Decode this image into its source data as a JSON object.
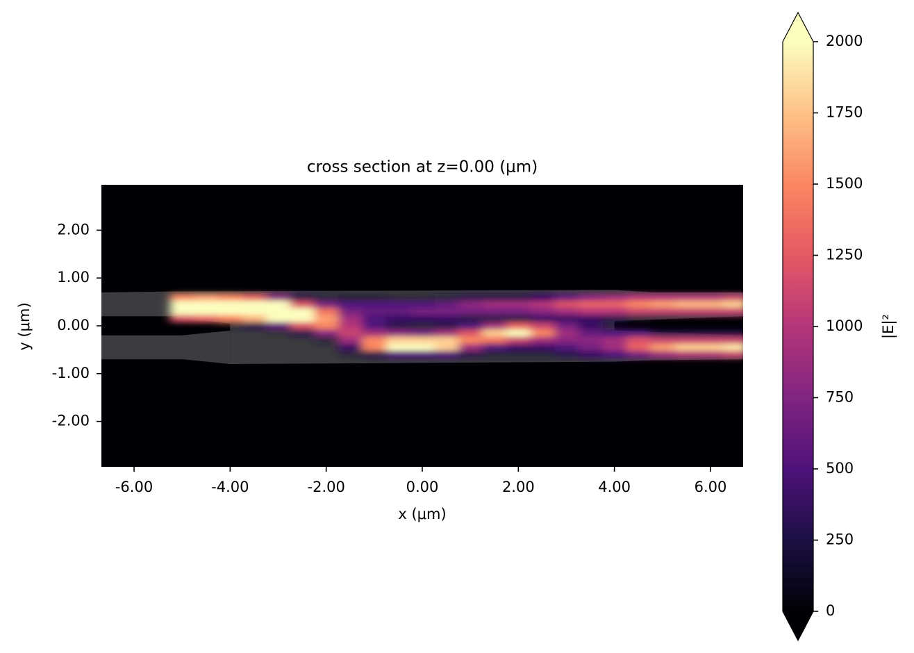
{
  "chart_data": {
    "type": "heatmap",
    "title": "cross section at z=0.00 (μm)",
    "x_label": "x (μm)",
    "y_label": "y (μm)",
    "xlim": [
      -6.68,
      6.68
    ],
    "ylim": [
      -2.95,
      2.95
    ],
    "xticks": [
      {
        "value": -6,
        "label": "-6.00"
      },
      {
        "value": -4,
        "label": "-4.00"
      },
      {
        "value": -2,
        "label": "-2.00"
      },
      {
        "value": 0,
        "label": "0.00"
      },
      {
        "value": 2,
        "label": "2.00"
      },
      {
        "value": 4,
        "label": "4.00"
      },
      {
        "value": 6,
        "label": "6.00"
      }
    ],
    "yticks": [
      {
        "value": -2,
        "label": "-2.00"
      },
      {
        "value": -1,
        "label": "-1.00"
      },
      {
        "value": 0,
        "label": "0.00"
      },
      {
        "value": 1,
        "label": "1.00"
      },
      {
        "value": 2,
        "label": "2.00"
      }
    ],
    "colormap": "magma",
    "structure_color": "#3c3c40",
    "structures": [
      {
        "points": [
          [
            -6.68,
            0.7
          ],
          [
            -5,
            0.72
          ],
          [
            -5,
            0.2
          ],
          [
            -6.68,
            0.2
          ]
        ]
      },
      {
        "points": [
          [
            -6.68,
            -0.2
          ],
          [
            -5,
            -0.2
          ],
          [
            -4,
            -0.1
          ],
          [
            -4,
            -0.8
          ],
          [
            -5,
            -0.7
          ],
          [
            -6.68,
            -0.7
          ]
        ]
      },
      {
        "points": [
          [
            -5,
            0.72
          ],
          [
            4,
            0.75
          ],
          [
            4.8,
            0.7
          ],
          [
            6.68,
            0.7
          ],
          [
            6.68,
            0.2
          ],
          [
            4,
            0.1
          ],
          [
            4,
            -0.1
          ],
          [
            6.68,
            -0.2
          ],
          [
            6.68,
            -0.7
          ],
          [
            4.8,
            -0.72
          ],
          [
            4,
            -0.75
          ],
          [
            -4,
            -0.8
          ],
          [
            -4,
            0.05
          ],
          [
            -5,
            0.15
          ]
        ]
      }
    ],
    "field": {
      "x": [
        -5,
        -4.5,
        -4,
        -3.5,
        -3,
        -2.5,
        -2,
        -1.5,
        -1,
        -0.5,
        0,
        0.5,
        1,
        1.5,
        2,
        2.5,
        3,
        3.5,
        4,
        4.5,
        5,
        5.5,
        6,
        6.5
      ],
      "y": [
        0.6,
        0.45,
        0.3,
        0.15,
        0,
        -0.15,
        -0.3,
        -0.45,
        -0.6
      ],
      "z": [
        [
          1500,
          1600,
          1500,
          1300,
          800,
          300,
          200,
          150,
          150,
          100,
          100,
          200,
          300,
          300,
          300,
          400,
          600,
          800,
          900,
          1000,
          1000,
          1000,
          1000,
          1100
        ],
        [
          2000,
          2000,
          2000,
          2000,
          2000,
          1200,
          700,
          500,
          500,
          500,
          500,
          600,
          800,
          900,
          900,
          1000,
          1200,
          1300,
          1300,
          1500,
          1600,
          1700,
          1700,
          1800
        ],
        [
          2000,
          2000,
          2000,
          2000,
          2000,
          2000,
          1400,
          700,
          600,
          600,
          700,
          700,
          700,
          700,
          700,
          800,
          900,
          1000,
          1000,
          1100,
          1100,
          1100,
          1100,
          1100
        ],
        [
          1200,
          1300,
          1500,
          1700,
          2000,
          2000,
          1600,
          900,
          500,
          400,
          400,
          400,
          300,
          300,
          300,
          400,
          400,
          400,
          300,
          200,
          100,
          100,
          100,
          100
        ],
        [
          0,
          0,
          100,
          300,
          600,
          1200,
          1500,
          1000,
          500,
          300,
          200,
          300,
          500,
          900,
          1300,
          1100,
          700,
          400,
          100,
          0,
          0,
          0,
          0,
          0
        ],
        [
          0,
          0,
          0,
          0,
          50,
          300,
          800,
          1100,
          900,
          800,
          700,
          900,
          1200,
          1800,
          2000,
          1500,
          900,
          600,
          500,
          500,
          300,
          300,
          300,
          300
        ],
        [
          0,
          0,
          0,
          0,
          0,
          0,
          200,
          900,
          1500,
          1800,
          1800,
          1800,
          1500,
          1400,
          1100,
          900,
          800,
          800,
          900,
          1200,
          1100,
          1100,
          1100,
          1100
        ],
        [
          0,
          0,
          0,
          0,
          0,
          0,
          0,
          400,
          1500,
          2000,
          2000,
          1800,
          900,
          500,
          400,
          400,
          500,
          700,
          900,
          1300,
          1600,
          1800,
          1800,
          1900
        ],
        [
          0,
          0,
          0,
          0,
          0,
          0,
          0,
          100,
          300,
          500,
          500,
          500,
          300,
          200,
          200,
          200,
          300,
          400,
          500,
          700,
          900,
          1000,
          1000,
          1100
        ]
      ]
    },
    "colorbar": {
      "label": "|E|²",
      "lim": [
        0,
        2000
      ],
      "ticks": [
        0,
        250,
        500,
        750,
        1000,
        1250,
        1500,
        1750,
        2000
      ],
      "extend": "both"
    }
  }
}
